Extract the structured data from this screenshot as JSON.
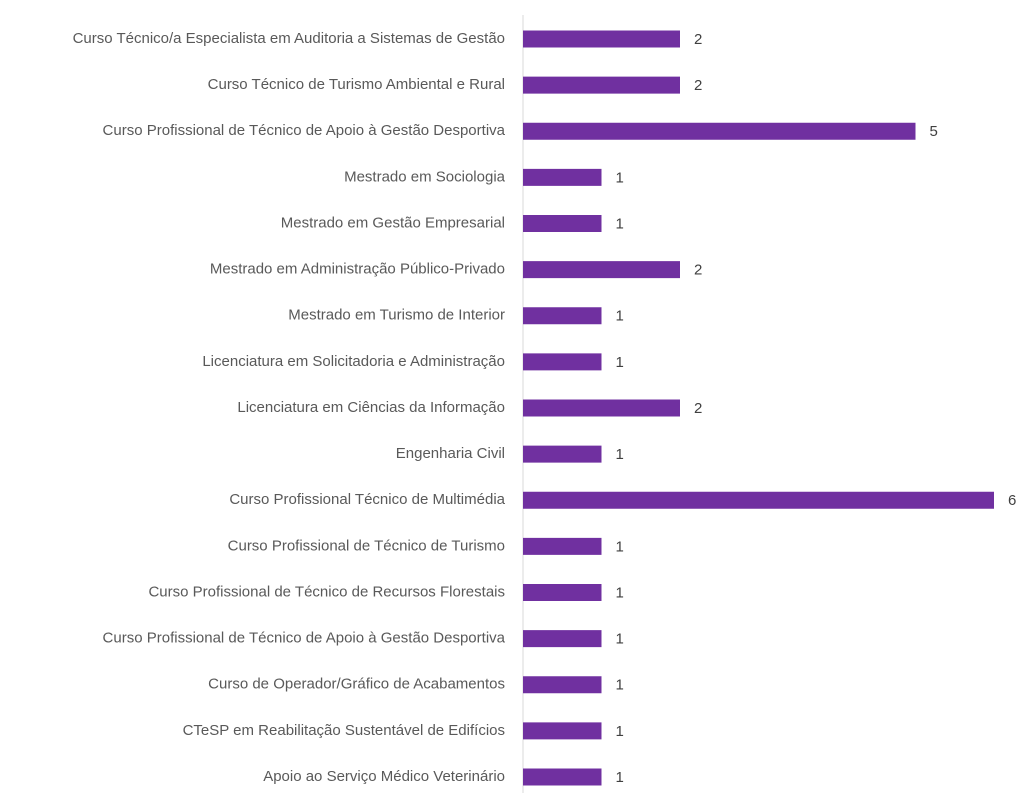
{
  "chart_data": {
    "type": "bar",
    "orientation": "horizontal",
    "color": "#7030a0",
    "categories": [
      "Curso Técnico/a Especialista em Auditoria a Sistemas de Gestão",
      "Curso Técnico de Turismo Ambiental e Rural",
      "Curso Profissional de Técnico de Apoio à Gestão Desportiva",
      "Mestrado em Sociologia",
      "Mestrado em Gestão Empresarial",
      "Mestrado em Administração Público-Privado",
      "Mestrado em Turismo de Interior",
      "Licenciatura em Solicitadoria e Administração",
      "Licenciatura em Ciências da Informação",
      "Engenharia Civil",
      "Curso Profissional Técnico de Multimédia",
      "Curso Profissional de Técnico de Turismo",
      "Curso Profissional de Técnico de Recursos Florestais",
      "Curso Profissional de Técnico de Apoio à Gestão Desportiva",
      "Curso de Operador/Gráfico de Acabamentos",
      "CTeSP em Reabilitação Sustentável de Edifícios",
      "Apoio ao Serviço Médico Veterinário"
    ],
    "values": [
      2,
      2,
      5,
      1,
      1,
      2,
      1,
      1,
      2,
      1,
      6,
      1,
      1,
      1,
      1,
      1,
      1
    ],
    "xlim": [
      0,
      6
    ]
  }
}
